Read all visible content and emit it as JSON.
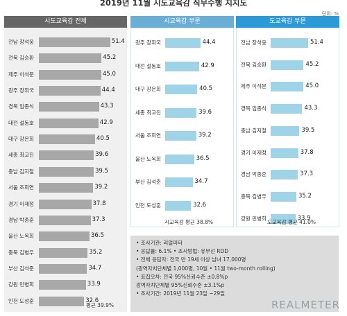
{
  "title": "2019년 11월 시도교육감 직무수행 지지도",
  "unit": "단위: %",
  "chart_data": [
    {
      "type": "bar",
      "title": "시도교육감 전체",
      "categories": [
        "전남 장석웅",
        "전북 김승환",
        "제주 이석문",
        "광주 장휘국",
        "경북 임종식",
        "대전 설동호",
        "대구 강은희",
        "세종 최교진",
        "충남 김지철",
        "서울 조희연",
        "경기 이재정",
        "경남 박종훈",
        "울산 노옥희",
        "충북 김병우",
        "부산 김석준",
        "강원 민병희",
        "인천 도성훈"
      ],
      "values": [
        51.4,
        45.2,
        45.0,
        44.4,
        43.3,
        42.9,
        40.5,
        39.6,
        39.5,
        39.2,
        37.8,
        37.3,
        36.5,
        35.2,
        34.7,
        33.9,
        32.6
      ],
      "value_labels": [
        "51.4",
        "45.2",
        "45.0",
        "44.4",
        "43.3",
        "42.9",
        "40.5",
        "39.6",
        "39.5",
        "39.2",
        "37.8",
        "37.3",
        "36.5",
        "35.2",
        "34.7",
        "33.9",
        "32.6"
      ],
      "average_label": "평균 39.9%",
      "header_color": "#666666",
      "bar_color": "#a8a8a8"
    },
    {
      "type": "bar",
      "title": "시교육감 부문",
      "categories": [
        "광주 장휘국",
        "대전 설동호",
        "대구 강은희",
        "세종 최교진",
        "서울 조희연",
        "울산 노옥희",
        "부산 김석준",
        "인천 도성훈"
      ],
      "values": [
        44.4,
        42.9,
        40.5,
        39.6,
        39.2,
        36.5,
        34.7,
        32.6
      ],
      "value_labels": [
        "44.4",
        "42.9",
        "40.5",
        "39.6",
        "39.2",
        "36.5",
        "34.7",
        "32.6"
      ],
      "average_label": "시교육감 평균 38.8%",
      "header_color": "#6aaed6",
      "bar_color": "#9fd3e8"
    },
    {
      "type": "bar",
      "title": "도교육감 부문",
      "categories": [
        "전남 장석웅",
        "전북 김승환",
        "제주 이석문",
        "경북 임종식",
        "충남 김지철",
        "경기 이재정",
        "경남 박종훈",
        "충북 김병우",
        "강원 민병희"
      ],
      "values": [
        51.4,
        45.2,
        45.0,
        43.3,
        39.5,
        37.8,
        37.3,
        35.2,
        33.9
      ],
      "value_labels": [
        "51.4",
        "45.2",
        "45.0",
        "43.3",
        "39.5",
        "37.8",
        "37.3",
        "35.2",
        "33.9"
      ],
      "average_label": "도교육감 평균 41.0%",
      "header_color": "#2b9ad6",
      "bar_color": "#9fd3e8"
    }
  ],
  "notes": [
    "• 조사기관: 리얼미터",
    "• 응답률: 6.1% • 조사방법: 유무선 RDD",
    "• 전체 응답자: 전국 만 19세 이상 남녀 17,000명",
    "   (광역자치단체별 1,000명, 10월 • 11월 two-month rolling)",
    "• 표집오차: 전국 95%신뢰수준 ±0.8%p",
    "   광역자치단체별 95%신뢰수준 ±3.1%p",
    "• 조사기간: 2019년 11월 23일 ~29일"
  ],
  "brand": "REALMETER"
}
